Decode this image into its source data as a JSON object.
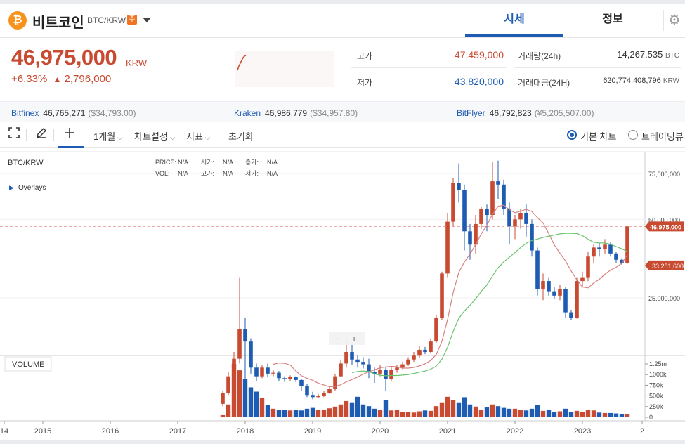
{
  "header": {
    "coin_logo_icon": "bitcoin-icon",
    "coin_name": "비트코인",
    "pair": "BTC/KRW",
    "warning_badge": "주",
    "tabs": [
      "시세",
      "정보"
    ],
    "active_tab": "시세",
    "settings_icon": "gear-icon"
  },
  "price": {
    "current": "46,975,000",
    "unit": "KRW",
    "change_pct": "+6.33%",
    "change_arrow": "▲",
    "change_amount": "2,796,000"
  },
  "stats": {
    "high_label": "고가",
    "high_value": "47,459,000",
    "low_label": "저가",
    "low_value": "43,820,000",
    "volume_label": "거래량(24h)",
    "volume_value": "14,267.535",
    "volume_unit": "BTC",
    "amount_label": "거래대금(24H)",
    "amount_value": "620,774,408,796",
    "amount_unit": "KRW"
  },
  "exchanges": [
    {
      "name": "Bitfinex",
      "price": "46,765,271",
      "usd": "($34,793.00)"
    },
    {
      "name": "Kraken",
      "price": "46,986,779",
      "usd": "($34,957.80)"
    },
    {
      "name": "BitFlyer",
      "price": "46,792,823",
      "usd": "(¥5,205,507.00)"
    }
  ],
  "toolbar": {
    "fullscreen_icon": "fullscreen-icon",
    "draw_icon": "pencil-icon",
    "crosshair_icon": "crosshair-icon",
    "period": "1개월",
    "chart_settings": "차트설정",
    "indicators": "지표",
    "reset": "초기화",
    "basic_chart": "기본 차트",
    "tradingview": "트레이딩뷰"
  },
  "chart_overlay": {
    "symbol": "BTC/KRW",
    "overlays": "Overlays",
    "price_label": "PRICE:",
    "price_val": "N/A",
    "open_label": "시가:",
    "open_val": "N/A",
    "close_label": "종가:",
    "close_val": "N/A",
    "vol_label": "VOL:",
    "vol_val": "N/A",
    "high_label": "고가:",
    "high_val": "N/A",
    "low_label": "저가:",
    "low_val": "N/A",
    "volume_title": "VOLUME",
    "zoom_out": "−",
    "zoom_in": "+"
  },
  "colors": {
    "up": "#c84a31",
    "down": "#1e5cb3",
    "ma_short": "#d98080",
    "ma_long": "#6cc46c"
  },
  "chart_data": {
    "type": "candlestick",
    "x_ticks": [
      "14",
      "2015",
      "2016",
      "2017",
      "2018",
      "2019",
      "2020",
      "2021",
      "2022",
      "2023",
      "2"
    ],
    "y_ticks": [
      "75,000,000",
      "50,000,000",
      "25,000,000"
    ],
    "volume_ticks": [
      "1.25m",
      "1000k",
      "750k",
      "500k",
      "250k",
      "0"
    ],
    "current_price_label": "46,975,000",
    "ma_label": "33,281,600",
    "current_price": 46975000,
    "ma_value": 33281600,
    "candles": [
      [
        9800000,
        10800000,
        9600000,
        11000000,
        50000
      ],
      [
        10800000,
        12500000,
        10600000,
        13000000,
        300000
      ],
      [
        12500000,
        14600000,
        12000000,
        15500000,
        1250000
      ],
      [
        14600000,
        19000000,
        14000000,
        30000000,
        1100000
      ],
      [
        19000000,
        17000000,
        12000000,
        21000000,
        900000
      ],
      [
        17000000,
        13500000,
        12800000,
        17500000,
        700000
      ],
      [
        13500000,
        12500000,
        12000000,
        14000000,
        600000
      ],
      [
        12500000,
        13500000,
        12300000,
        13800000,
        450000
      ],
      [
        13500000,
        12800000,
        12400000,
        14000000,
        280000
      ],
      [
        12800000,
        12900000,
        12500000,
        13200000,
        200000
      ],
      [
        12900000,
        12300000,
        12000000,
        13100000,
        180000
      ],
      [
        12300000,
        12200000,
        11900000,
        12500000,
        170000
      ],
      [
        12200000,
        12400000,
        12000000,
        12600000,
        160000
      ],
      [
        12400000,
        12100000,
        11900000,
        12500000,
        170000
      ],
      [
        12100000,
        11500000,
        11000000,
        12200000,
        160000
      ],
      [
        11500000,
        10600000,
        10400000,
        11700000,
        200000
      ],
      [
        10600000,
        10400000,
        10200000,
        10900000,
        220000
      ],
      [
        10400000,
        10500000,
        10300000,
        10700000,
        180000
      ],
      [
        10500000,
        10800000,
        10400000,
        11000000,
        170000
      ],
      [
        10800000,
        11200000,
        10700000,
        11500000,
        210000
      ],
      [
        11200000,
        12500000,
        11000000,
        12800000,
        250000
      ],
      [
        12500000,
        14000000,
        12400000,
        14500000,
        300000
      ],
      [
        14000000,
        15500000,
        13500000,
        17500000,
        380000
      ],
      [
        15500000,
        14500000,
        13800000,
        16500000,
        350000
      ],
      [
        14500000,
        14200000,
        13500000,
        15000000,
        480000
      ],
      [
        14200000,
        13900000,
        13400000,
        14800000,
        300000
      ],
      [
        13900000,
        13000000,
        12300000,
        14600000,
        260000
      ],
      [
        13000000,
        12800000,
        11800000,
        13500000,
        200000
      ],
      [
        12800000,
        13200000,
        12500000,
        13800000,
        180000
      ],
      [
        13200000,
        12200000,
        11000000,
        13600000,
        400000
      ],
      [
        12200000,
        13200000,
        12000000,
        13500000,
        160000
      ],
      [
        13200000,
        13500000,
        12900000,
        13800000,
        170000
      ],
      [
        13500000,
        13900000,
        13300000,
        14200000,
        120000
      ],
      [
        13900000,
        14500000,
        13700000,
        14800000,
        130000
      ],
      [
        14500000,
        15000000,
        14200000,
        15500000,
        110000
      ],
      [
        15000000,
        15800000,
        14700000,
        16300000,
        140000
      ],
      [
        15800000,
        15500000,
        15200000,
        16200000,
        160000
      ],
      [
        15500000,
        17000000,
        15300000,
        17500000,
        150000
      ],
      [
        17000000,
        21000000,
        16800000,
        21500000,
        260000
      ],
      [
        21000000,
        31000000,
        20500000,
        31500000,
        350000
      ],
      [
        31000000,
        49000000,
        30000000,
        53000000,
        480000
      ],
      [
        49000000,
        69000000,
        47000000,
        72000000,
        400000
      ],
      [
        69000000,
        65000000,
        58000000,
        82000000,
        350000
      ],
      [
        65000000,
        45000000,
        38000000,
        68000000,
        470000
      ],
      [
        45000000,
        40000000,
        35000000,
        48000000,
        300000
      ],
      [
        40000000,
        48000000,
        37000000,
        52000000,
        250000
      ],
      [
        48000000,
        55000000,
        46000000,
        56000000,
        180000
      ],
      [
        55000000,
        52000000,
        45000000,
        57000000,
        230000
      ],
      [
        52000000,
        70000000,
        50000000,
        83000000,
        300000
      ],
      [
        70000000,
        68000000,
        60000000,
        84000000,
        260000
      ],
      [
        68000000,
        55000000,
        52000000,
        71000000,
        220000
      ],
      [
        55000000,
        47000000,
        40000000,
        58000000,
        200000
      ],
      [
        47000000,
        50000000,
        42000000,
        52000000,
        200000
      ],
      [
        50000000,
        53000000,
        46000000,
        55000000,
        180000
      ],
      [
        53000000,
        48000000,
        43000000,
        57000000,
        160000
      ],
      [
        48000000,
        38000000,
        36000000,
        50000000,
        200000
      ],
      [
        38000000,
        27000000,
        25500000,
        39000000,
        290000
      ],
      [
        27000000,
        29000000,
        24500000,
        31000000,
        150000
      ],
      [
        29000000,
        26500000,
        25500000,
        30000000,
        170000
      ],
      [
        26500000,
        25500000,
        24800000,
        27500000,
        130000
      ],
      [
        25500000,
        27000000,
        24500000,
        28000000,
        140000
      ],
      [
        27000000,
        22000000,
        21000000,
        27500000,
        200000
      ],
      [
        22000000,
        21000000,
        20500000,
        22500000,
        130000
      ],
      [
        21000000,
        29000000,
        20800000,
        30000000,
        150000
      ],
      [
        29000000,
        30000000,
        27500000,
        31500000,
        130000
      ],
      [
        30000000,
        36000000,
        29000000,
        37500000,
        180000
      ],
      [
        36000000,
        39000000,
        34000000,
        40000000,
        160000
      ],
      [
        39000000,
        38500000,
        36000000,
        40500000,
        110000
      ],
      [
        38500000,
        40000000,
        37000000,
        42000000,
        100000
      ],
      [
        40000000,
        37000000,
        36000000,
        41000000,
        100000
      ],
      [
        37000000,
        35000000,
        34000000,
        37500000,
        90000
      ],
      [
        35000000,
        34000000,
        33500000,
        35500000,
        80000
      ],
      [
        34000000,
        46975000,
        33800000,
        47459000,
        70000
      ]
    ]
  }
}
